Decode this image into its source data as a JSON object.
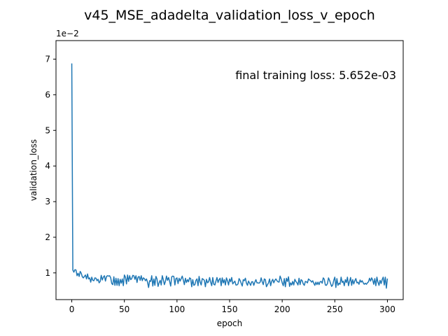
{
  "chart_data": {
    "type": "line",
    "title": "v45_MSE_adadelta_validation_loss_v_epoch",
    "xlabel": "epoch",
    "ylabel": "validation_loss",
    "y_scale_note": "1e−2",
    "annotation": "final training loss: 5.652e-03",
    "xlim": [
      -15,
      315
    ],
    "ylim": [
      0.0025,
      0.0752
    ],
    "x_ticks": [
      0,
      50,
      100,
      150,
      200,
      250,
      300
    ],
    "y_ticks": [
      {
        "value": 0.01,
        "label": "1"
      },
      {
        "value": 0.02,
        "label": "2"
      },
      {
        "value": 0.03,
        "label": "3"
      },
      {
        "value": 0.04,
        "label": "4"
      },
      {
        "value": 0.05,
        "label": "5"
      },
      {
        "value": 0.06,
        "label": "6"
      },
      {
        "value": 0.07,
        "label": "7"
      }
    ],
    "grid": false,
    "series": [
      {
        "color": "#1f77b4",
        "x": [
          0,
          1,
          2,
          3,
          4,
          5,
          6,
          7,
          8,
          9,
          10,
          11,
          12,
          13,
          14,
          15,
          16,
          17,
          18,
          19,
          20,
          21,
          22,
          23,
          24,
          25,
          26,
          27,
          28,
          29,
          30,
          31,
          32,
          33,
          34,
          35,
          36,
          37,
          38,
          39,
          40,
          41,
          42,
          43,
          44,
          45,
          46,
          47,
          48,
          49,
          50,
          51,
          52,
          53,
          54,
          55,
          56,
          57,
          58,
          59,
          60,
          61,
          62,
          63,
          64,
          65,
          66,
          67,
          68,
          69,
          70,
          71,
          72,
          73,
          74,
          75,
          76,
          77,
          78,
          79,
          80,
          81,
          82,
          83,
          84,
          85,
          86,
          87,
          88,
          89,
          90,
          91,
          92,
          93,
          94,
          95,
          96,
          97,
          98,
          99,
          100,
          101,
          102,
          103,
          104,
          105,
          106,
          107,
          108,
          109,
          110,
          111,
          112,
          113,
          114,
          115,
          116,
          117,
          118,
          119,
          120,
          121,
          122,
          123,
          124,
          125,
          126,
          127,
          128,
          129,
          130,
          131,
          132,
          133,
          134,
          135,
          136,
          137,
          138,
          139,
          140,
          141,
          142,
          143,
          144,
          145,
          146,
          147,
          148,
          149,
          150,
          151,
          152,
          153,
          154,
          155,
          156,
          157,
          158,
          159,
          160,
          161,
          162,
          163,
          164,
          165,
          166,
          167,
          168,
          169,
          170,
          171,
          172,
          173,
          174,
          175,
          176,
          177,
          178,
          179,
          180,
          181,
          182,
          183,
          184,
          185,
          186,
          187,
          188,
          189,
          190,
          191,
          192,
          193,
          194,
          195,
          196,
          197,
          198,
          199,
          200,
          201,
          202,
          203,
          204,
          205,
          206,
          207,
          208,
          209,
          210,
          211,
          212,
          213,
          214,
          215,
          216,
          217,
          218,
          219,
          220,
          221,
          222,
          223,
          224,
          225,
          226,
          227,
          228,
          229,
          230,
          231,
          232,
          233,
          234,
          235,
          236,
          237,
          238,
          239,
          240,
          241,
          242,
          243,
          244,
          245,
          246,
          247,
          248,
          249,
          250,
          251,
          252,
          253,
          254,
          255,
          256,
          257,
          258,
          259,
          260,
          261,
          262,
          263,
          264,
          265,
          266,
          267,
          268,
          269,
          270,
          271,
          272,
          273,
          274,
          275,
          276,
          277,
          278,
          279,
          280,
          281,
          282,
          283,
          284,
          285,
          286,
          287,
          288,
          289,
          290,
          291,
          292,
          293,
          294,
          295,
          296,
          297,
          298,
          299,
          300
        ],
        "y": [
          0.0688,
          0.0108,
          0.0102,
          0.0109,
          0.0108,
          0.0092,
          0.0099,
          0.009,
          0.0104,
          0.0099,
          0.0089,
          0.0086,
          0.009,
          0.0094,
          0.0083,
          0.0097,
          0.0083,
          0.0086,
          0.0074,
          0.0088,
          0.0079,
          0.0078,
          0.0086,
          0.0085,
          0.0078,
          0.0082,
          0.0072,
          0.0076,
          0.0093,
          0.008,
          0.0088,
          0.0092,
          0.0077,
          0.009,
          0.0092,
          0.0091,
          0.0092,
          0.0086,
          0.007,
          0.0067,
          0.0089,
          0.0065,
          0.0085,
          0.0065,
          0.0084,
          0.0064,
          0.0082,
          0.0071,
          0.0083,
          0.0064,
          0.0094,
          0.0088,
          0.0069,
          0.0094,
          0.0076,
          0.0092,
          0.0081,
          0.0084,
          0.0093,
          0.0092,
          0.0082,
          0.0092,
          0.0073,
          0.0088,
          0.009,
          0.0079,
          0.0092,
          0.0078,
          0.0086,
          0.0084,
          0.0078,
          0.0083,
          0.0074,
          0.0059,
          0.0078,
          0.0076,
          0.0092,
          0.0063,
          0.0083,
          0.0065,
          0.009,
          0.0083,
          0.0062,
          0.0072,
          0.0079,
          0.0066,
          0.0092,
          0.0081,
          0.0067,
          0.0076,
          0.0091,
          0.0079,
          0.0087,
          0.0076,
          0.0063,
          0.0089,
          0.0091,
          0.009,
          0.0066,
          0.0084,
          0.0086,
          0.007,
          0.0085,
          0.0077,
          0.0084,
          0.0091,
          0.008,
          0.0067,
          0.0085,
          0.0073,
          0.0081,
          0.0075,
          0.0086,
          0.0084,
          0.0061,
          0.0081,
          0.0065,
          0.0067,
          0.0079,
          0.0083,
          0.0064,
          0.009,
          0.0074,
          0.0066,
          0.0084,
          0.0082,
          0.0079,
          0.0061,
          0.0082,
          0.0072,
          0.0075,
          0.0087,
          0.0074,
          0.0064,
          0.0087,
          0.0068,
          0.0066,
          0.0077,
          0.0087,
          0.0073,
          0.0081,
          0.0085,
          0.0064,
          0.0086,
          0.0072,
          0.0081,
          0.0066,
          0.0086,
          0.0078,
          0.0066,
          0.0083,
          0.0075,
          0.0087,
          0.0069,
          0.0073,
          0.0077,
          0.0066,
          0.0066,
          0.0069,
          0.0084,
          0.0079,
          0.0071,
          0.0063,
          0.0081,
          0.0078,
          0.0085,
          0.0071,
          0.0065,
          0.0077,
          0.0071,
          0.0065,
          0.0075,
          0.0075,
          0.0065,
          0.0074,
          0.0081,
          0.0072,
          0.0072,
          0.0071,
          0.0074,
          0.0086,
          0.0075,
          0.0067,
          0.0083,
          0.0081,
          0.0061,
          0.0067,
          0.0072,
          0.0083,
          0.0064,
          0.0076,
          0.0082,
          0.0072,
          0.0079,
          0.0083,
          0.0078,
          0.0075,
          0.0074,
          0.0091,
          0.0083,
          0.0072,
          0.0064,
          0.0084,
          0.0061,
          0.0085,
          0.0076,
          0.0089,
          0.0062,
          0.0072,
          0.0066,
          0.0076,
          0.0066,
          0.0082,
          0.0076,
          0.0072,
          0.0066,
          0.0085,
          0.0067,
          0.0081,
          0.0078,
          0.0069,
          0.0065,
          0.0076,
          0.0075,
          0.0072,
          0.0083,
          0.008,
          0.0078,
          0.0074,
          0.0078,
          0.0071,
          0.0065,
          0.0074,
          0.0067,
          0.0074,
          0.0067,
          0.0075,
          0.0076,
          0.0071,
          0.0086,
          0.0082,
          0.0066,
          0.0065,
          0.007,
          0.0086,
          0.0079,
          0.007,
          0.0062,
          0.0066,
          0.0079,
          0.0088,
          0.0059,
          0.0084,
          0.0065,
          0.0071,
          0.0068,
          0.0088,
          0.0073,
          0.0077,
          0.0064,
          0.0081,
          0.0073,
          0.0088,
          0.0064,
          0.0076,
          0.0087,
          0.0065,
          0.0081,
          0.0069,
          0.0078,
          0.0084,
          0.0072,
          0.0074,
          0.0068,
          0.008,
          0.0074,
          0.0078,
          0.0072,
          0.0068,
          0.0071,
          0.0068,
          0.0072,
          0.0075,
          0.0085,
          0.0077,
          0.0086,
          0.008,
          0.0068,
          0.0084,
          0.0064,
          0.0088,
          0.0074,
          0.0065,
          0.0079,
          0.007,
          0.0081,
          0.0088,
          0.0066,
          0.0088,
          0.0057,
          0.0084
        ]
      }
    ]
  }
}
